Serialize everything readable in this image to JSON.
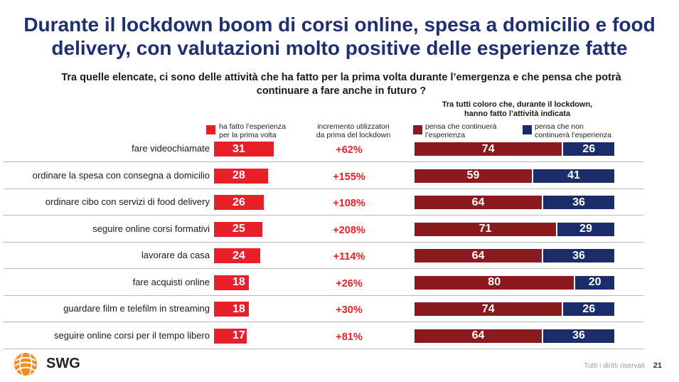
{
  "title": "Durante il lockdown boom di corsi online, spesa a domicilio e food delivery, con valutazioni molto positive delle esperienze fatte",
  "title_line1": "Durante il lockdown boom di corsi online, spesa a domicilio e food",
  "title_line2": "delivery, con valutazioni molto positive delle esperienze fatte",
  "question_line1": "Tra quelle elencate, ci sono delle attività che ha fatto per la prima volta durante l’emergenza e che pensa che potrà",
  "question_line2": "continuare a fare anche in futuro ?",
  "group_header_line1": "Tra tutti coloro che, durante il lockdown,",
  "group_header_line2": "hanno fatto l’attività indicata",
  "legend": {
    "first_time_l1": "ha fatto l’esperienza",
    "first_time_l2": "per la prima volta",
    "increment_l1": "incremento utilizzatori",
    "increment_l2": "da prima del lockdown",
    "continue_l1": "pensa che continuerà",
    "continue_l2": "l’esperienza",
    "not_continue_l1": "pensa che non",
    "not_continue_l2": "continuerà l’esperienza"
  },
  "colors": {
    "first_time": "#e8202a",
    "continue": "#8b1a1f",
    "not_continue": "#1b2c6b",
    "increment_text": "#e8202a",
    "title": "#1f2f6f"
  },
  "chart_data": {
    "type": "bar",
    "categories": [
      "fare videochiamate",
      "ordinare la spesa con consegna a domicilio",
      "ordinare cibo con servizi di food delivery",
      "seguire online corsi formativi",
      "lavorare da casa",
      "fare acquisti online",
      "guardare film e telefilm in streaming",
      "seguire online corsi per il tempo libero"
    ],
    "series": [
      {
        "name": "ha fatto l’esperienza per la prima volta",
        "values": [
          31,
          28,
          26,
          25,
          24,
          18,
          18,
          17
        ]
      },
      {
        "name": "pensa che continuerà l’esperienza",
        "values": [
          74,
          59,
          64,
          71,
          64,
          80,
          74,
          64
        ]
      },
      {
        "name": "pensa che non continuerà l’esperienza",
        "values": [
          26,
          41,
          36,
          29,
          36,
          20,
          26,
          36
        ]
      }
    ],
    "increment_labels": [
      "+62%",
      "+155%",
      "+108%",
      "+208%",
      "+114%",
      "+26%",
      "+30%",
      "+81%"
    ],
    "units": "%"
  },
  "footer": {
    "rights": "Tutti i diritti riservati",
    "page": "21",
    "brand": "SWG"
  }
}
